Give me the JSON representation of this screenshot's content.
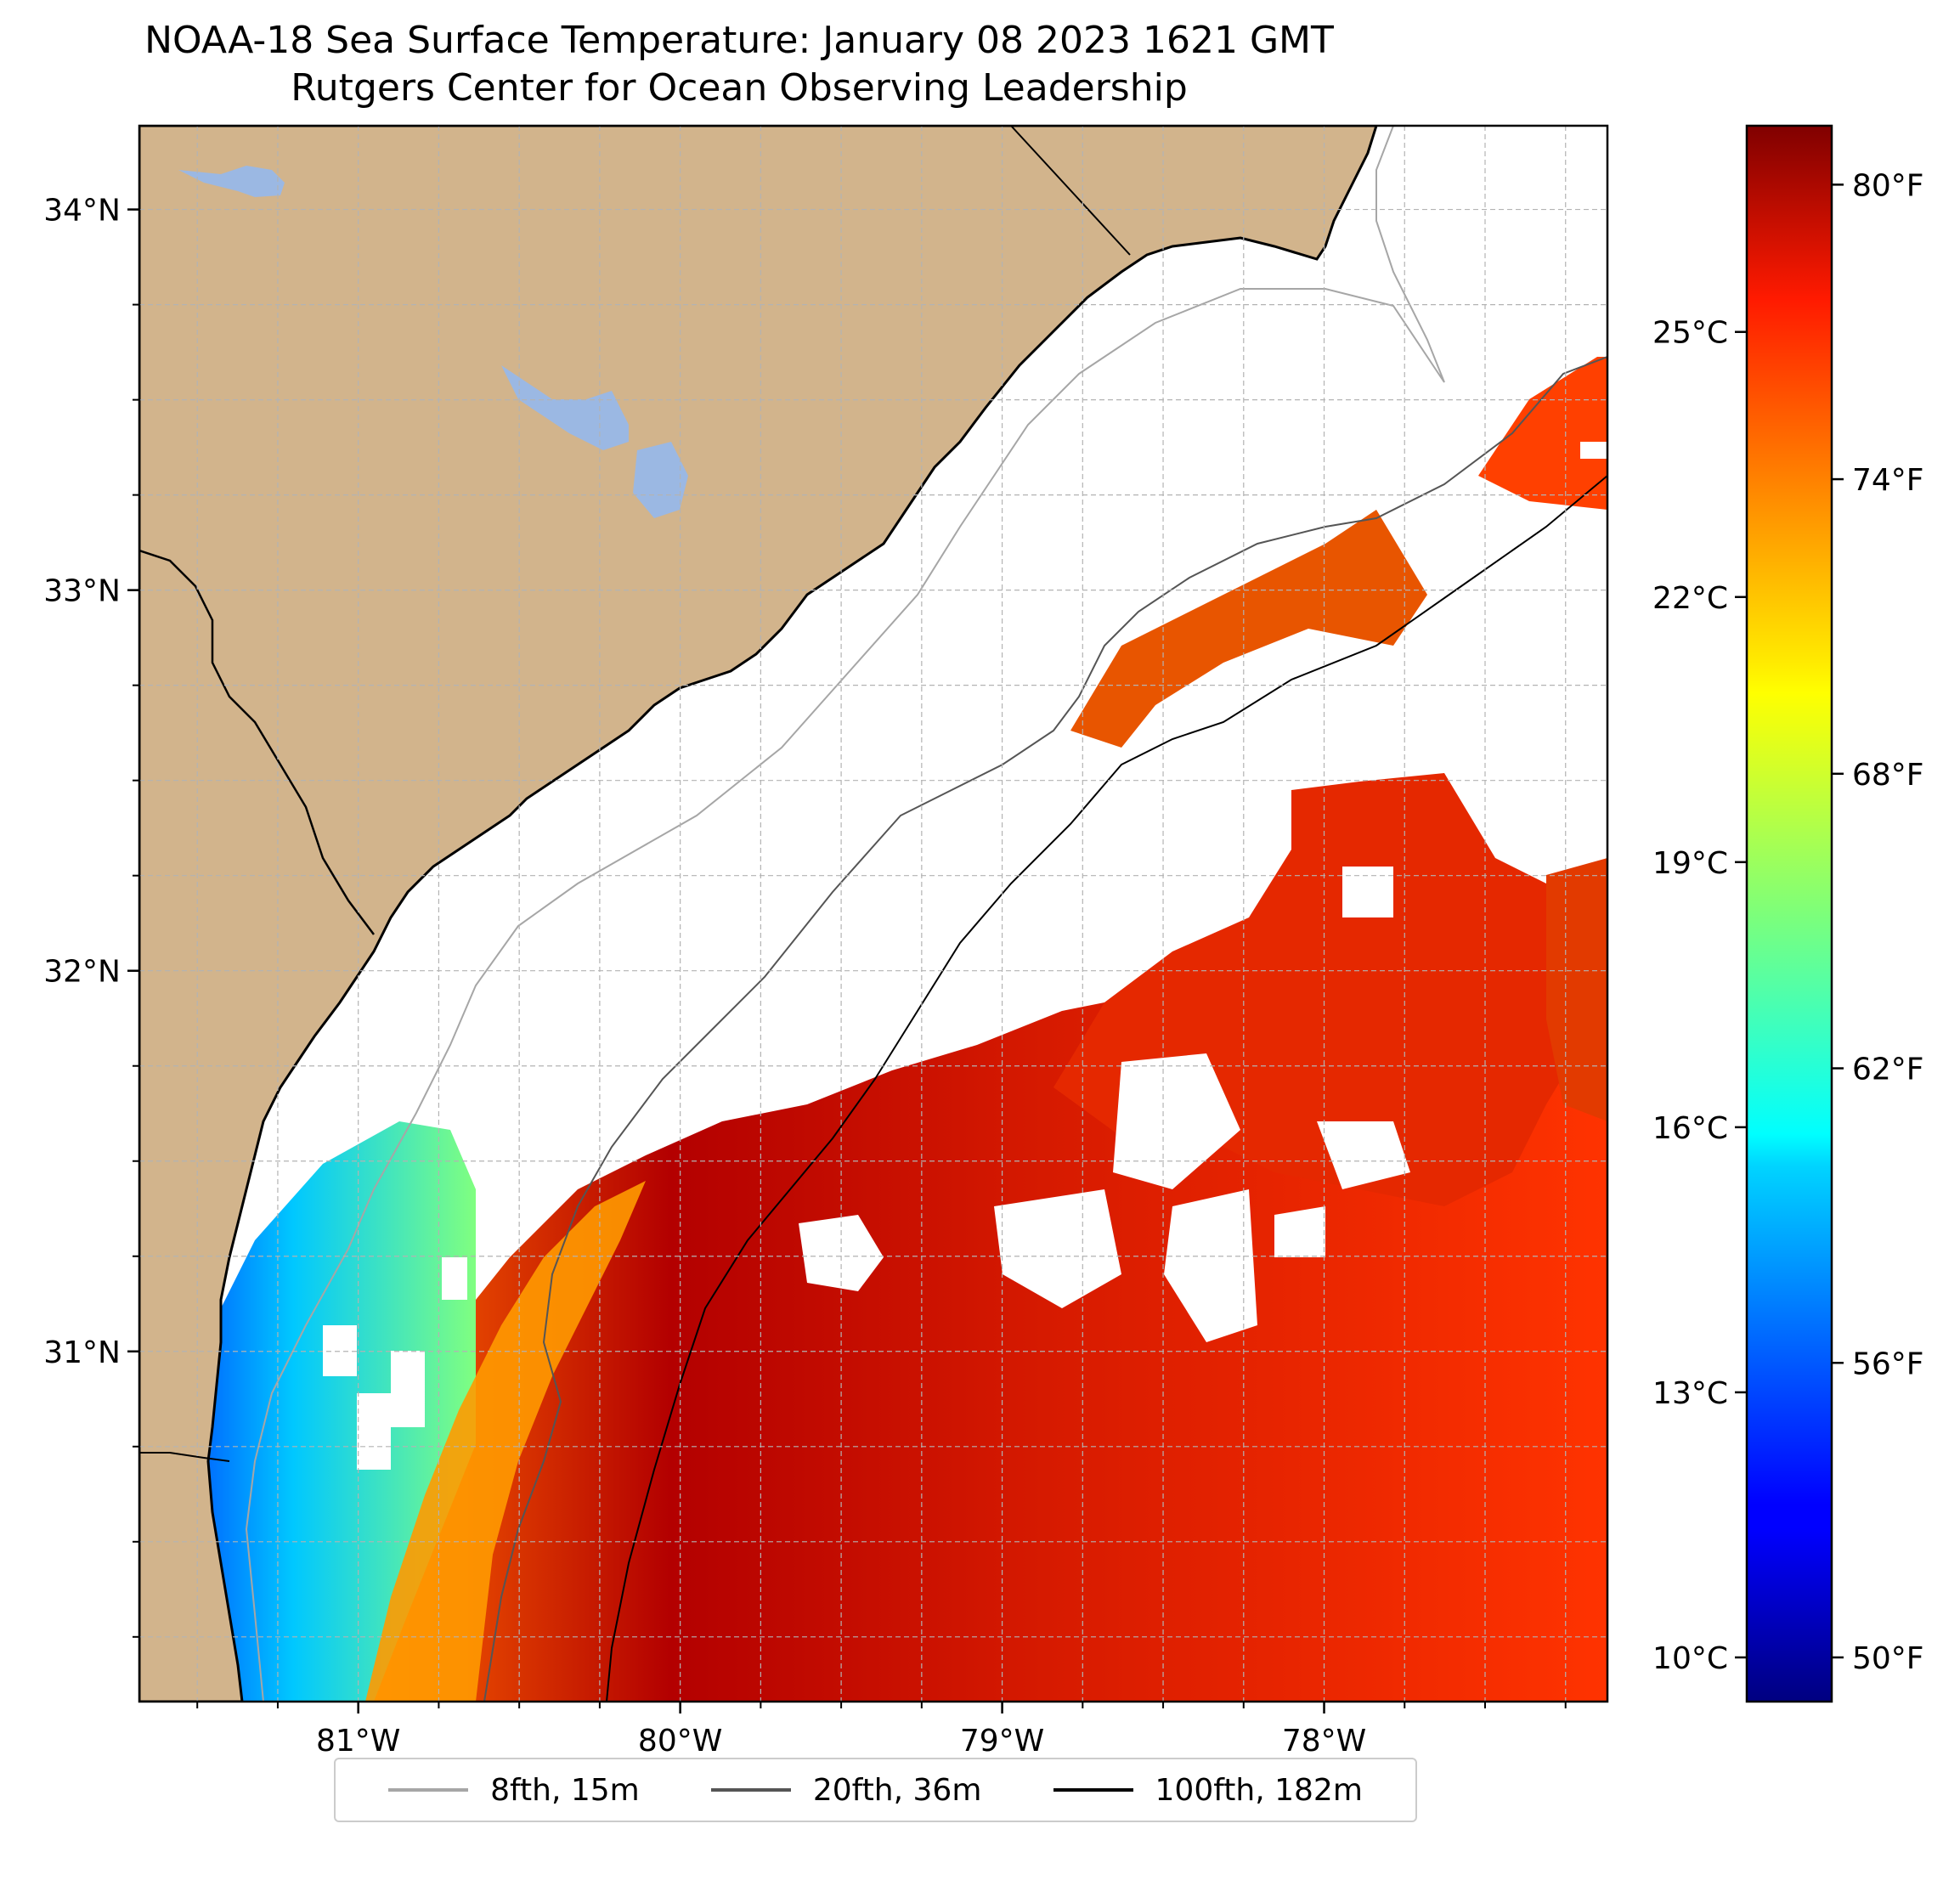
{
  "title": {
    "line1": "NOAA-18 Sea Surface Temperature: January 08 2023 1621 GMT",
    "line2": "Rutgers Center for Ocean Observing Leadership"
  },
  "map": {
    "lon_range": [
      -81.68,
      -77.12
    ],
    "lat_range": [
      30.08,
      34.22
    ],
    "lat_ticks": [
      {
        "value": 34,
        "label": "34°N"
      },
      {
        "value": 33,
        "label": "33°N"
      },
      {
        "value": 32,
        "label": "32°N"
      },
      {
        "value": 31,
        "label": "31°N"
      }
    ],
    "lon_ticks": [
      {
        "value": -81,
        "label": "81°W"
      },
      {
        "value": -80,
        "label": "80°W"
      },
      {
        "value": -79,
        "label": "79°W"
      },
      {
        "value": -78,
        "label": "78°W"
      }
    ],
    "grid": true,
    "colors": {
      "land": "#d2b48c",
      "water_body": "#9bb8e3",
      "no_data": "#ffffff",
      "grid": "#b3b3b3"
    }
  },
  "colorbar": {
    "colormap": "jet",
    "range_f": [
      49.1,
      81.2
    ],
    "celsius_ticks": [
      {
        "value_c": 25,
        "label": "25°C"
      },
      {
        "value_c": 22,
        "label": "22°C"
      },
      {
        "value_c": 19,
        "label": "19°C"
      },
      {
        "value_c": 16,
        "label": "16°C"
      },
      {
        "value_c": 13,
        "label": "13°C"
      },
      {
        "value_c": 10,
        "label": "10°C"
      }
    ],
    "fahrenheit_ticks": [
      {
        "value_f": 80,
        "label": "80°F"
      },
      {
        "value_f": 74,
        "label": "74°F"
      },
      {
        "value_f": 68,
        "label": "68°F"
      },
      {
        "value_f": 62,
        "label": "62°F"
      },
      {
        "value_f": 56,
        "label": "56°F"
      },
      {
        "value_f": 50,
        "label": "50°F"
      }
    ]
  },
  "legend": {
    "items": [
      {
        "label": "8fth, 15m",
        "color": "#a6a6a6"
      },
      {
        "label": "20fth, 36m",
        "color": "#555555"
      },
      {
        "label": "100fth, 182m",
        "color": "#000000"
      }
    ]
  }
}
